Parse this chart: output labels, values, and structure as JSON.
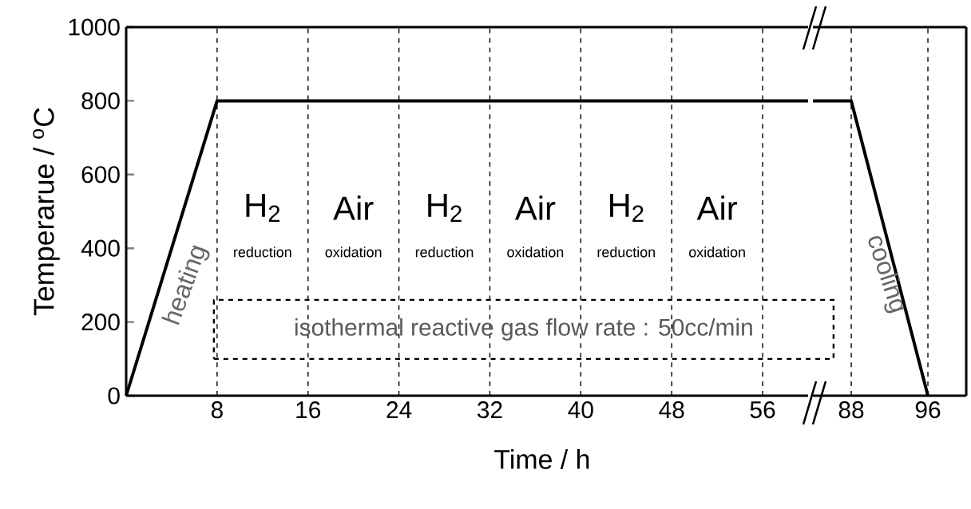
{
  "chart_data": [
    {
      "type": "line",
      "xlabel": "Time / h",
      "ylabel": "Temperarue / $^{o}$C",
      "xlim": [
        0,
        60
      ],
      "ylim": [
        0,
        1000
      ],
      "xticks": [
        8,
        16,
        24,
        32,
        40,
        48,
        56
      ],
      "yticks": [
        0,
        200,
        400,
        600,
        800,
        1000
      ],
      "series": [
        {
          "color": "#000000",
          "x": [
            0,
            8,
            60
          ],
          "values": [
            0,
            800,
            800
          ]
        }
      ],
      "ref_lines": [
        {
          "axis": "x",
          "value": 8,
          "line_style": "dashed"
        },
        {
          "axis": "x",
          "value": 16,
          "line_style": "dashed"
        },
        {
          "axis": "x",
          "value": 24,
          "line_style": "dashed"
        },
        {
          "axis": "x",
          "value": 32,
          "line_style": "dashed"
        },
        {
          "axis": "x",
          "value": 40,
          "line_style": "dashed"
        },
        {
          "axis": "x",
          "value": 48,
          "line_style": "dashed"
        },
        {
          "axis": "x",
          "value": 56,
          "line_style": "dashed"
        }
      ],
      "annotations": [
        "H$_{2}$",
        "reduction",
        "Air",
        "oxidation",
        "H$_{2}$",
        "reduction",
        "Air",
        "oxidation",
        "H$_{2}$",
        "reduction",
        "Air",
        "oxidation",
        "heating",
        "isothermal reactive gas flow rate : 50cc/min"
      ]
    },
    {
      "type": "line",
      "xlim": [
        84,
        100
      ],
      "ylim": [
        0,
        1000
      ],
      "xticks": [
        88,
        96
      ],
      "yticks": [
        0,
        200,
        400,
        600,
        800,
        1000
      ],
      "tick_labels": "x",
      "series": [
        {
          "color": "#000000",
          "x": [
            84,
            88,
            96
          ],
          "values": [
            800,
            800,
            0
          ]
        }
      ],
      "ref_lines": [
        {
          "axis": "x",
          "value": 88,
          "line_style": "dashed"
        },
        {
          "axis": "x",
          "value": 96,
          "line_style": "dashed"
        }
      ],
      "annotations": [
        "cooling"
      ]
    }
  ]
}
